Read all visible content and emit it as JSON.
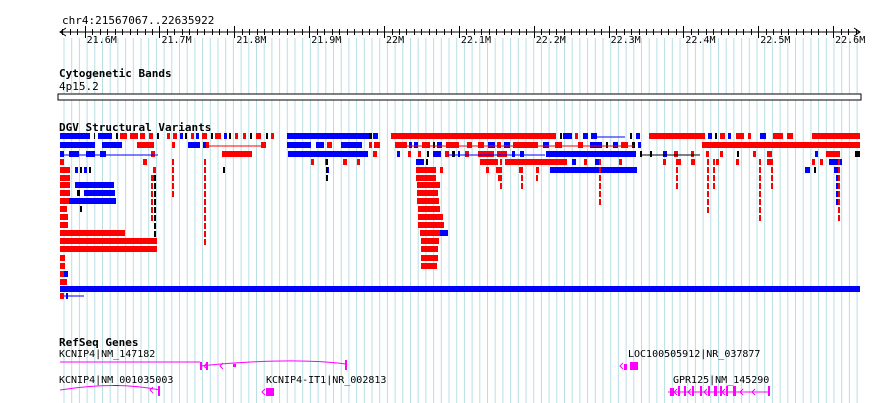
{
  "browser": {
    "position": "chr4:21567067..22635922",
    "colors": {
      "grid": "#b8dfe6",
      "gain": "#ff0000",
      "loss": "#0000ff",
      "other": "#000000",
      "gene": "#ff00ff",
      "background": "#ffffff"
    },
    "ruler": {
      "start_bp": 21567067,
      "end_bp": 22635922,
      "ticks": [
        "21.6M",
        "21.7M",
        "21.8M",
        "21.9M",
        "22M",
        "22.1M",
        "22.2M",
        "22.3M",
        "22.4M",
        "22.5M",
        "22.6M"
      ]
    },
    "tracks": {
      "cytobands": {
        "title": "Cytogenetic Bands",
        "band": "4p15.2"
      },
      "dgv": {
        "title": "DGV Structural Variants"
      },
      "refseq": {
        "title": "RefSeq Genes",
        "genes": [
          {
            "name": "KCNIP4|NM_147182",
            "icon": "gene-model-kcnip4-nm-147182"
          },
          {
            "name": "KCNIP4|NM_001035003",
            "icon": "gene-model-kcnip4-nm-001035003"
          },
          {
            "name": "KCNIP4-IT1|NR_002813",
            "icon": "gene-model-kcnip4-it1"
          },
          {
            "name": "LOC100505912|NR_037877",
            "icon": "gene-model-loc100505912"
          },
          {
            "name": "GPR125|NM_145290",
            "icon": "gene-model-gpr125"
          }
        ]
      }
    }
  }
}
